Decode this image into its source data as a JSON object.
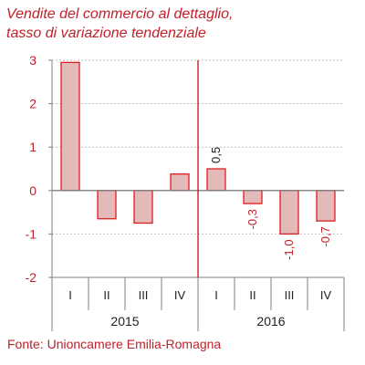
{
  "chart_data": {
    "type": "bar",
    "title": "Vendite del commercio al dettaglio,",
    "subtitle": "tasso di variazione tendenziale",
    "source": "Fonte: Unioncamere Emilia-Romagna",
    "categories": [
      "I",
      "II",
      "III",
      "IV",
      "I",
      "II",
      "III",
      "IV"
    ],
    "groups": [
      {
        "label": "2015",
        "count": 4
      },
      {
        "label": "2016",
        "count": 4
      }
    ],
    "values": [
      2.95,
      -0.65,
      -0.75,
      0.38,
      0.5,
      -0.3,
      -1.0,
      -0.7
    ],
    "data_labels": [
      "",
      "",
      "",
      "",
      "0,5",
      "-0,3",
      "-1,0",
      "-0,7"
    ],
    "ylim": [
      -2,
      3
    ],
    "yticks": [
      3,
      2,
      1,
      0,
      -1,
      -2
    ],
    "ytick_labels": [
      "3",
      "2",
      "1",
      "0",
      "-1",
      "-2"
    ],
    "grid": true,
    "colors": {
      "bar_fill": "#e3b9b9",
      "bar_stroke": "#dc1e1e",
      "text_red": "#c0202a",
      "divider": "#c01020",
      "axis": "#7f7f7f",
      "grid": "#bfbfbf"
    }
  }
}
